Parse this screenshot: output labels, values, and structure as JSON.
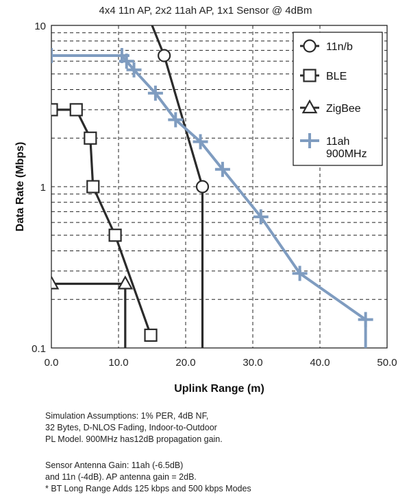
{
  "chart_data": {
    "type": "line",
    "title": "4x4 11n AP, 2x2 11ah AP, 1x1 Sensor @ 4dBm",
    "xlabel": "Uplink Range (m)",
    "ylabel": "Data Rate (Mbps)",
    "xlim": [
      0,
      50
    ],
    "ylim": [
      0.1,
      10
    ],
    "yscale": "log",
    "xticks": [
      "0.0",
      "10.0",
      "20.0",
      "30.0",
      "40.0",
      "50.0"
    ],
    "yticks": [
      "0.1",
      "1",
      "10"
    ],
    "grid": "dashed",
    "legend_position": "top-right",
    "series": [
      {
        "name": "11n/b",
        "marker": "circle",
        "color": "#2b2b2b",
        "points": [
          [
            15,
            10
          ],
          [
            16.8,
            6.5
          ],
          [
            22.5,
            1.0
          ],
          [
            22.5,
            0.1
          ]
        ],
        "markers": [
          [
            16.8,
            6.5
          ],
          [
            22.5,
            1.0
          ]
        ]
      },
      {
        "name": "BLE",
        "marker": "square",
        "color": "#2b2b2b",
        "points": [
          [
            0,
            3.0
          ],
          [
            3.7,
            3.0
          ],
          [
            5.8,
            2.0
          ],
          [
            6.2,
            1.0
          ],
          [
            9.5,
            0.5
          ],
          [
            14.8,
            0.12
          ]
        ],
        "markers": [
          [
            0,
            3.0
          ],
          [
            3.7,
            3.0
          ],
          [
            5.8,
            2.0
          ],
          [
            6.2,
            1.0
          ],
          [
            9.5,
            0.5
          ],
          [
            14.8,
            0.12
          ]
        ]
      },
      {
        "name": "ZigBee",
        "marker": "triangle",
        "color": "#2b2b2b",
        "points": [
          [
            0,
            0.25
          ],
          [
            11,
            0.25
          ],
          [
            11,
            0.1
          ]
        ],
        "markers": [
          [
            0,
            0.25
          ],
          [
            11,
            0.25
          ]
        ]
      },
      {
        "name": "11ah\n900MHz",
        "marker": "plus",
        "color": "#7f9cc0",
        "points": [
          [
            0,
            6.5
          ],
          [
            10.5,
            6.5
          ],
          [
            11.2,
            6.0
          ],
          [
            12.3,
            5.3
          ],
          [
            15.5,
            3.8
          ],
          [
            18.5,
            2.6
          ],
          [
            22.2,
            1.9
          ],
          [
            25.5,
            1.28
          ],
          [
            31.2,
            0.65
          ],
          [
            37.0,
            0.29
          ],
          [
            46.8,
            0.15
          ],
          [
            46.8,
            0.1
          ]
        ],
        "markers": [
          [
            0,
            6.5
          ],
          [
            10.5,
            6.5
          ],
          [
            11.2,
            6.0
          ],
          [
            12.3,
            5.3
          ],
          [
            15.5,
            3.8
          ],
          [
            18.5,
            2.6
          ],
          [
            22.2,
            1.9
          ],
          [
            25.5,
            1.28
          ],
          [
            31.2,
            0.65
          ],
          [
            37.0,
            0.29
          ],
          [
            46.8,
            0.15
          ]
        ]
      }
    ]
  },
  "legend": [
    {
      "label": "11n/b"
    },
    {
      "label": "BLE"
    },
    {
      "label": "ZigBee"
    },
    {
      "label": "11ah",
      "label2": "900MHz"
    }
  ],
  "notes": {
    "block1": [
      "Simulation Assumptions: 1% PER, 4dB NF,",
      "32 Bytes, D-NLOS Fading, Indoor-to-Outdoor",
      "PL Model. 900MHz has12dB propagation gain."
    ],
    "block2": [
      "Sensor Antenna Gain: 11ah (-6.5dB)",
      "and 11n (-4dB). AP antenna gain = 2dB.",
      "* BT Long Range Adds 125 kbps and 500 kbps Modes"
    ]
  }
}
